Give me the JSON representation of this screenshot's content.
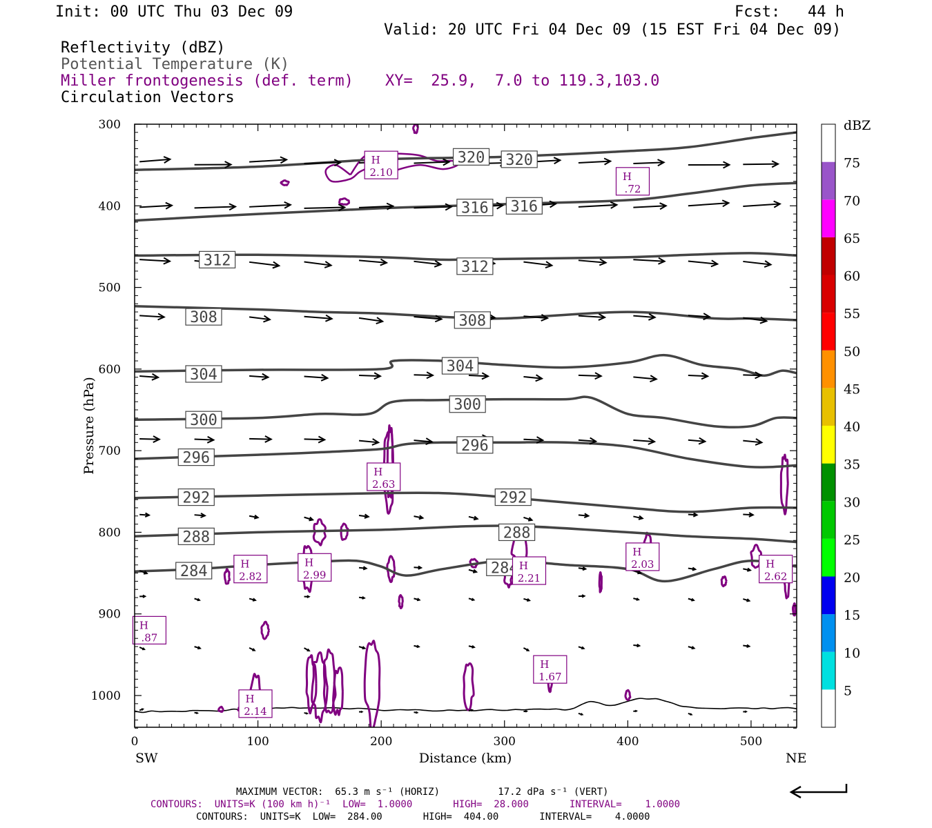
{
  "header": {
    "init": "Init: 00 UTC Thu 03 Dec 09",
    "fcst": "Fcst:   44 h",
    "valid": "Valid: 20 UTC Fri 04 Dec 09 (15 EST Fri 04 Dec 09)"
  },
  "legend": {
    "reflectivity": "Reflectivity (dBZ)",
    "theta": "Potential Temperature (K)",
    "frontogenesis": "Miller frontogenesis (def. term)",
    "xy": "XY=  25.9,  7.0 to 119.3,103.0",
    "circulation": "Circulation Vectors"
  },
  "chart_data": {
    "type": "line",
    "xlabel": "Distance (km)",
    "ylabel": "Pressure (hPa)",
    "xlim": [
      0,
      537
    ],
    "ylim": [
      1040,
      300
    ],
    "x_ticks": [
      "0",
      "100",
      "200",
      "300",
      "400",
      "500"
    ],
    "y_ticks": [
      "300",
      "400",
      "500",
      "600",
      "700",
      "800",
      "900",
      "1000"
    ],
    "x_end_labels": {
      "left": "SW",
      "right": "NE"
    },
    "isentropes": [
      {
        "name": "284",
        "x": [
          0,
          50,
          100,
          150,
          180,
          200,
          220,
          250,
          300,
          350,
          400,
          430,
          470,
          500,
          537
        ],
        "p": [
          848,
          845,
          840,
          836,
          835,
          842,
          853,
          845,
          835,
          840,
          845,
          860,
          845,
          835,
          842
        ]
      },
      {
        "name": "288",
        "x": [
          0,
          100,
          200,
          300,
          400,
          450,
          500,
          537
        ],
        "p": [
          805,
          800,
          797,
          792,
          800,
          805,
          808,
          812
        ]
      },
      {
        "name": "292",
        "x": [
          0,
          100,
          200,
          250,
          300,
          400,
          450,
          500,
          537
        ],
        "p": [
          758,
          755,
          752,
          752,
          757,
          770,
          775,
          770,
          770
        ]
      },
      {
        "name": "296",
        "x": [
          0,
          100,
          150,
          200,
          220,
          250,
          300,
          350,
          400,
          450,
          500,
          537
        ],
        "p": [
          710,
          705,
          702,
          698,
          692,
          690,
          690,
          690,
          695,
          710,
          720,
          718
        ]
      },
      {
        "name": "300",
        "x": [
          0,
          100,
          150,
          190,
          210,
          250,
          300,
          350,
          370,
          400,
          430,
          470,
          500,
          520,
          537
        ],
        "p": [
          662,
          660,
          655,
          655,
          640,
          638,
          637,
          637,
          635,
          655,
          660,
          670,
          670,
          660,
          660
        ]
      },
      {
        "name": "304",
        "x": [
          0,
          100,
          200,
          210,
          250,
          300,
          350,
          400,
          430,
          460,
          490,
          510,
          525,
          537
        ],
        "p": [
          603,
          601,
          600,
          590,
          590,
          595,
          598,
          592,
          583,
          595,
          600,
          608,
          602,
          605
        ]
      },
      {
        "name": "308",
        "x": [
          0,
          100,
          150,
          200,
          250,
          300,
          400,
          470,
          500,
          537
        ],
        "p": [
          523,
          527,
          530,
          532,
          536,
          538,
          530,
          538,
          538,
          540
        ]
      },
      {
        "name": "312",
        "x": [
          0,
          100,
          200,
          250,
          300,
          400,
          450,
          500,
          537
        ],
        "p": [
          461,
          460,
          463,
          466,
          465,
          463,
          460,
          458,
          461
        ]
      },
      {
        "name": "316",
        "x": [
          0,
          100,
          200,
          300,
          400,
          450,
          500,
          537
        ],
        "p": [
          418,
          410,
          403,
          398,
          393,
          385,
          375,
          372
        ]
      },
      {
        "name": "320",
        "x": [
          0,
          100,
          200,
          300,
          400,
          450,
          500,
          537
        ],
        "p": [
          356,
          352,
          343,
          340,
          333,
          328,
          317,
          310
        ]
      }
    ],
    "isentrope_labels": [
      {
        "text": "284",
        "x": 48,
        "p": 847
      },
      {
        "text": "284",
        "x": 300,
        "p": 843
      },
      {
        "text": "288",
        "x": 50,
        "p": 805
      },
      {
        "text": "288",
        "x": 310,
        "p": 800
      },
      {
        "text": "292",
        "x": 50,
        "p": 757
      },
      {
        "text": "292",
        "x": 307,
        "p": 757
      },
      {
        "text": "296",
        "x": 50,
        "p": 708
      },
      {
        "text": "296",
        "x": 276,
        "p": 693
      },
      {
        "text": "300",
        "x": 56,
        "p": 662
      },
      {
        "text": "300",
        "x": 270,
        "p": 643
      },
      {
        "text": "304",
        "x": 56,
        "p": 606
      },
      {
        "text": "304",
        "x": 264,
        "p": 596
      },
      {
        "text": "308",
        "x": 56,
        "p": 536
      },
      {
        "text": "308",
        "x": 274,
        "p": 540
      },
      {
        "text": "312",
        "x": 67,
        "p": 466
      },
      {
        "text": "312",
        "x": 276,
        "p": 474
      },
      {
        "text": "316",
        "x": 276,
        "p": 402
      },
      {
        "text": "316",
        "x": 316,
        "p": 400
      },
      {
        "text": "320",
        "x": 273,
        "p": 340
      },
      {
        "text": "320",
        "x": 312,
        "p": 343
      }
    ],
    "highs": [
      {
        "label": "H",
        "value": "2.10",
        "x": 200,
        "p": 350
      },
      {
        "label": "H",
        "value": ".72",
        "x": 404,
        "p": 370
      },
      {
        "label": "H",
        "value": "2.63",
        "x": 202,
        "p": 732
      },
      {
        "label": "H",
        "value": "2.82",
        "x": 94,
        "p": 845
      },
      {
        "label": "H",
        "value": "2.99",
        "x": 146,
        "p": 843
      },
      {
        "label": "H",
        "value": "2.21",
        "x": 320,
        "p": 847
      },
      {
        "label": "H",
        "value": "2.03",
        "x": 412,
        "p": 830
      },
      {
        "label": "H",
        "value": "2.62",
        "x": 520,
        "p": 845
      },
      {
        "label": "H",
        "value": ".87",
        "x": 12,
        "p": 920
      },
      {
        "label": "H",
        "value": "1.67",
        "x": 337,
        "p": 968
      },
      {
        "label": "H",
        "value": "2.14",
        "x": 98,
        "p": 1010
      }
    ],
    "colorbar": {
      "unit": "dBZ",
      "labels": [
        "5",
        "10",
        "15",
        "20",
        "25",
        "30",
        "35",
        "40",
        "45",
        "50",
        "55",
        "60",
        "65",
        "70",
        "75"
      ],
      "colors": [
        "#ffffff",
        "#00e0e0",
        "#0090f0",
        "#0000f0",
        "#00ff00",
        "#00c800",
        "#009000",
        "#ffff00",
        "#e8c000",
        "#ff9000",
        "#ff0000",
        "#d80000",
        "#c00000",
        "#ff00ff",
        "#9955c9",
        "#ffffff"
      ]
    },
    "max_vector_ref": {
      "horiz_ms": 65.3,
      "vert_dpa_s": 17.2
    }
  },
  "footer": {
    "line1": "MAXIMUM VECTOR:  65.3 m s⁻¹ (HORIZ)          17.2 dPa s⁻¹ (VERT)",
    "line2": "CONTOURS:  UNITS=K (100 km h)⁻¹  LOW=  1.0000       HIGH=  28.000       INTERVAL=    1.0000",
    "line3": "CONTOURS:  UNITS=K  LOW=  284.00       HIGH=  404.00       INTERVAL=    4.0000"
  }
}
